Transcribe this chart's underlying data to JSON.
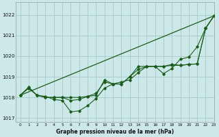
{
  "title": "Graphe pression niveau de la mer (hPa)",
  "background_color": "#cce8e8",
  "grid_color": "#aacccc",
  "line_color": "#1a5c1a",
  "xlim": [
    -0.5,
    23
  ],
  "ylim": [
    1016.8,
    1022.6
  ],
  "yticks": [
    1017,
    1018,
    1019,
    1020,
    1021,
    1022
  ],
  "xticks": [
    0,
    1,
    2,
    3,
    4,
    5,
    6,
    7,
    8,
    9,
    10,
    11,
    12,
    13,
    14,
    15,
    16,
    17,
    18,
    19,
    20,
    21,
    22,
    23
  ],
  "straight_line": [
    [
      0,
      1018.1
    ],
    [
      23,
      1021.95
    ]
  ],
  "series": [
    [
      1018.1,
      1018.5,
      1018.1,
      1018.05,
      1017.9,
      1017.85,
      1017.3,
      1017.35,
      1017.6,
      1017.95,
      1018.45,
      1018.65,
      1018.75,
      1018.85,
      1019.2,
      1019.5,
      1019.5,
      1019.15,
      1019.4,
      1019.85,
      1019.95,
      1020.45,
      1021.35,
      1021.95
    ],
    [
      1018.1,
      1018.45,
      1018.1,
      1018.0,
      1018.0,
      1018.0,
      1017.85,
      1017.9,
      1018.05,
      1018.2,
      1018.75,
      1018.65,
      1018.65,
      1019.0,
      1019.35,
      1019.5,
      1019.5,
      1019.5,
      1019.55,
      1019.55,
      1019.6,
      1019.62,
      1021.35,
      1021.95
    ],
    [
      1018.1,
      1018.45,
      1018.1,
      1018.0,
      1018.0,
      1018.0,
      1018.0,
      1018.0,
      1018.05,
      1018.1,
      1018.85,
      1018.65,
      1018.65,
      1019.0,
      1019.5,
      1019.5,
      1019.5,
      1019.5,
      1019.6,
      1019.55,
      1019.6,
      1019.62,
      1021.35,
      1021.95
    ]
  ]
}
